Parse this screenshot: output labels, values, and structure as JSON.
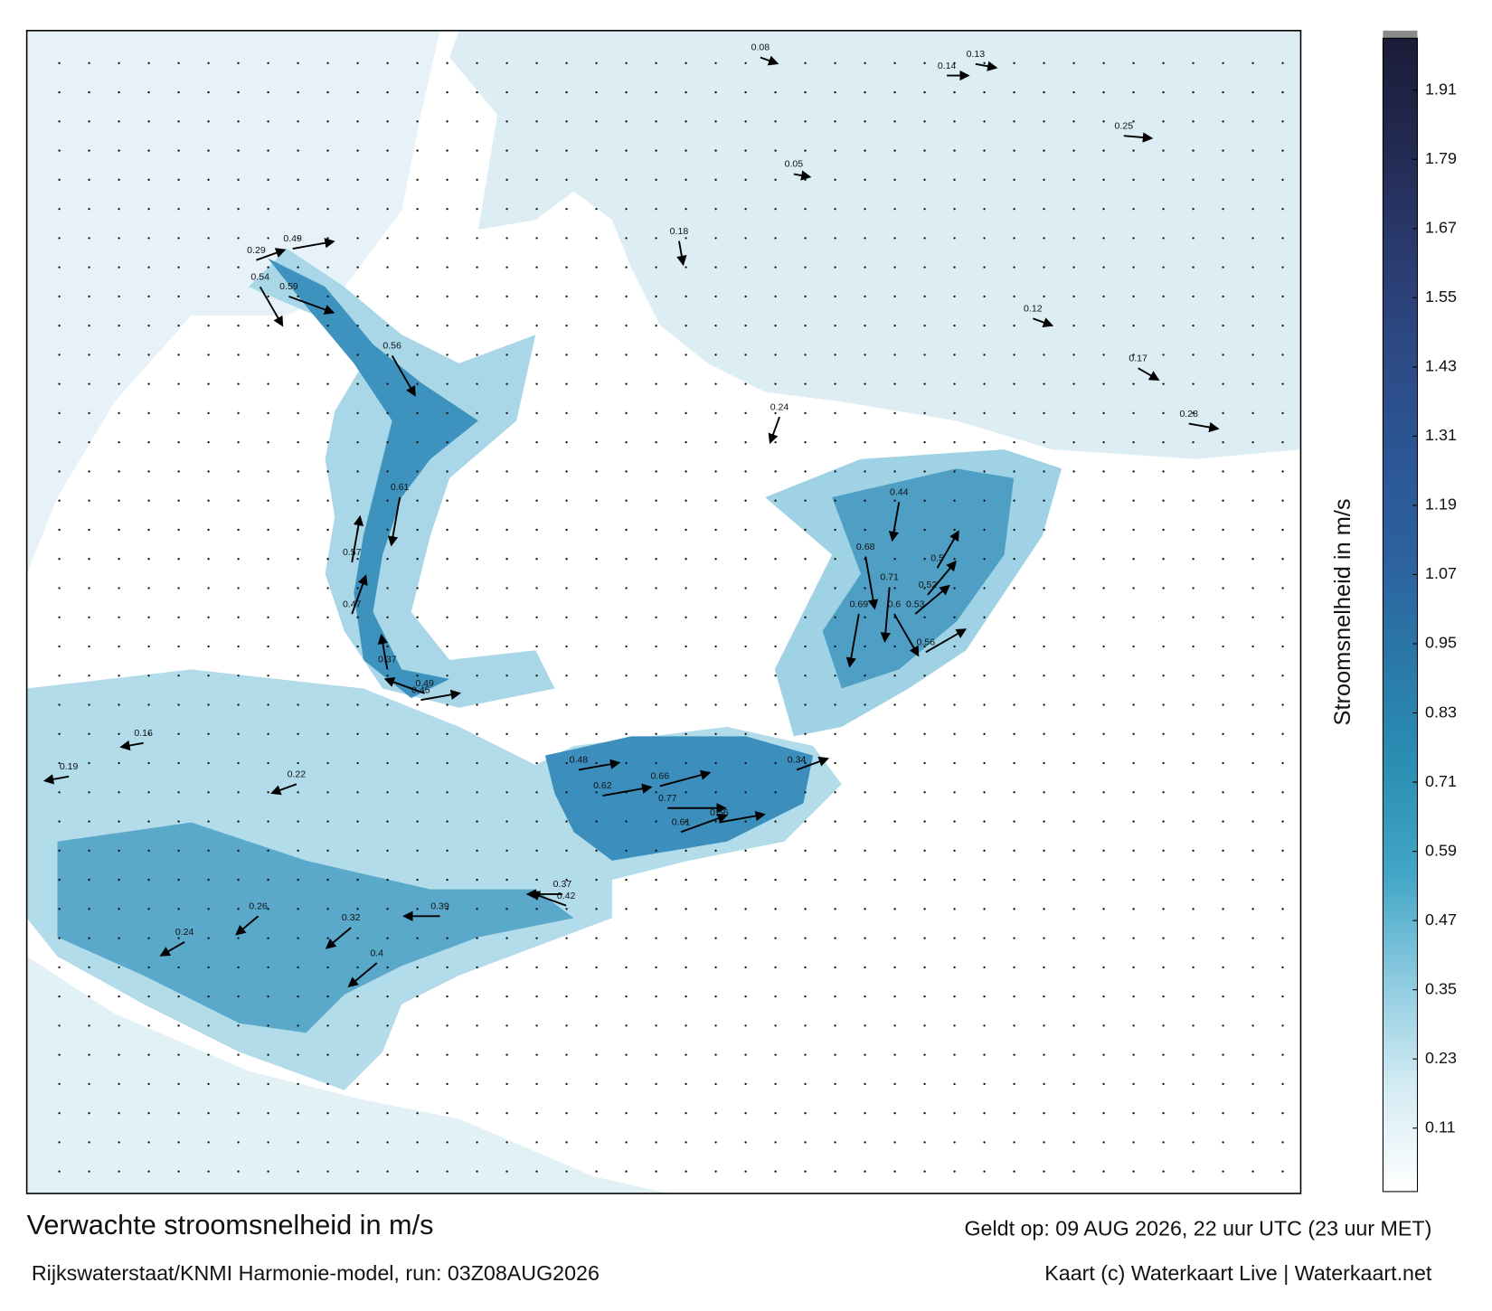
{
  "title": "Verwachte stroomsnelheid in m/s",
  "valid_time": "Geldt op: 09 AUG 2026, 22 uur UTC (23 uur MET)",
  "source": "Rijkswaterstaat/KNMI Harmonie-model, run: 03Z08AUG2026",
  "credit": "Kaart (c) Waterkaart Live | Waterkaart.net",
  "colorbar": {
    "label": "Stroomsnelheid in m/s",
    "lim": [
      0,
      2
    ],
    "ticks": [
      0.11,
      0.23,
      0.35,
      0.47,
      0.59,
      0.71,
      0.83,
      0.95,
      1.07,
      1.19,
      1.31,
      1.43,
      1.55,
      1.67,
      1.79,
      1.91
    ],
    "colors": [
      "#ffffff",
      "#d4ebf3",
      "#8ecbe0",
      "#43a6c6",
      "#2b90b4",
      "#2a7aa8",
      "#2c629f",
      "#2c5695",
      "#2d4a85",
      "#2a3a6e",
      "#222a50",
      "#1b1b38"
    ]
  },
  "current_labels": [
    0.54,
    0.59,
    0.29,
    0.49,
    0.56,
    0.45,
    0.49,
    0.61,
    0.57,
    0.47,
    0.37,
    0.71,
    0.69,
    0.6,
    0.68,
    0.56,
    0.53,
    0.5,
    0.52,
    0.44,
    0.62,
    0.77,
    0.66,
    0.56,
    0.61,
    0.48,
    0.34,
    0.42,
    0.37,
    0.39,
    0.32,
    0.4,
    0.26,
    0.24,
    0.22,
    0.16,
    0.19,
    0.18,
    0.24,
    0.25,
    0.14,
    0.13,
    0.12,
    0.17,
    0.28,
    0.05,
    0.08
  ]
}
